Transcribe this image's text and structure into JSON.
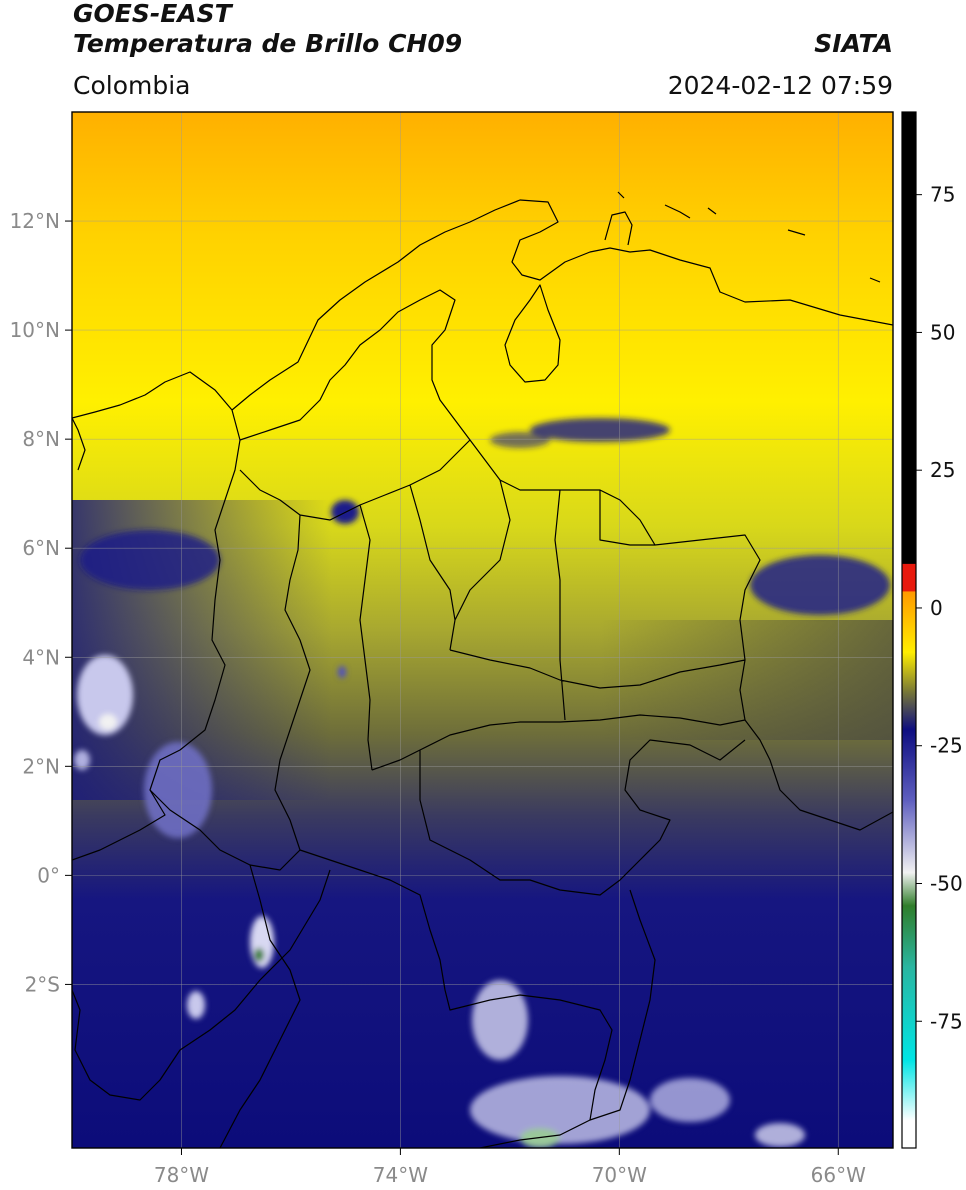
{
  "header": {
    "satellite": "GOES-EAST",
    "product": "Temperatura de Brillo CH09",
    "region": "Colombia",
    "agency": "SIATA",
    "datetime": "2024-02-12 07:59"
  },
  "map": {
    "lon_range": [
      -80,
      -65
    ],
    "lat_range": [
      -5,
      14
    ],
    "lat_ticks": [
      {
        "value": 12,
        "label": "12°N"
      },
      {
        "value": 10,
        "label": "10°N"
      },
      {
        "value": 8,
        "label": "8°N"
      },
      {
        "value": 6,
        "label": "6°N"
      },
      {
        "value": 4,
        "label": "4°N"
      },
      {
        "value": 2,
        "label": "2°N"
      },
      {
        "value": 0,
        "label": "0°"
      },
      {
        "value": -2,
        "label": "2°S"
      }
    ],
    "lon_ticks": [
      {
        "value": -78,
        "label": "78°W"
      },
      {
        "value": -74,
        "label": "74°W"
      },
      {
        "value": -70,
        "label": "70°W"
      },
      {
        "value": -66,
        "label": "66°W"
      }
    ],
    "grid": true
  },
  "colorbar": {
    "range": [
      -98,
      90
    ],
    "ticks": [
      {
        "value": 75,
        "label": "75"
      },
      {
        "value": 50,
        "label": "50"
      },
      {
        "value": 25,
        "label": "25"
      },
      {
        "value": 0,
        "label": "0"
      },
      {
        "value": -25,
        "label": "-25"
      },
      {
        "value": -50,
        "label": "-50"
      },
      {
        "value": -75,
        "label": "-75"
      }
    ],
    "colors": {
      "black": "#000000",
      "red": "#e8190d",
      "orange": "#ff9900",
      "yellow": "#ffee00",
      "olive": "#7a7a35",
      "navy": "#0d0d80",
      "white": "#f2f2f2",
      "green": "#2f7d2a",
      "teal": "#2ab5a0",
      "cyan": "#00e5e5"
    }
  }
}
